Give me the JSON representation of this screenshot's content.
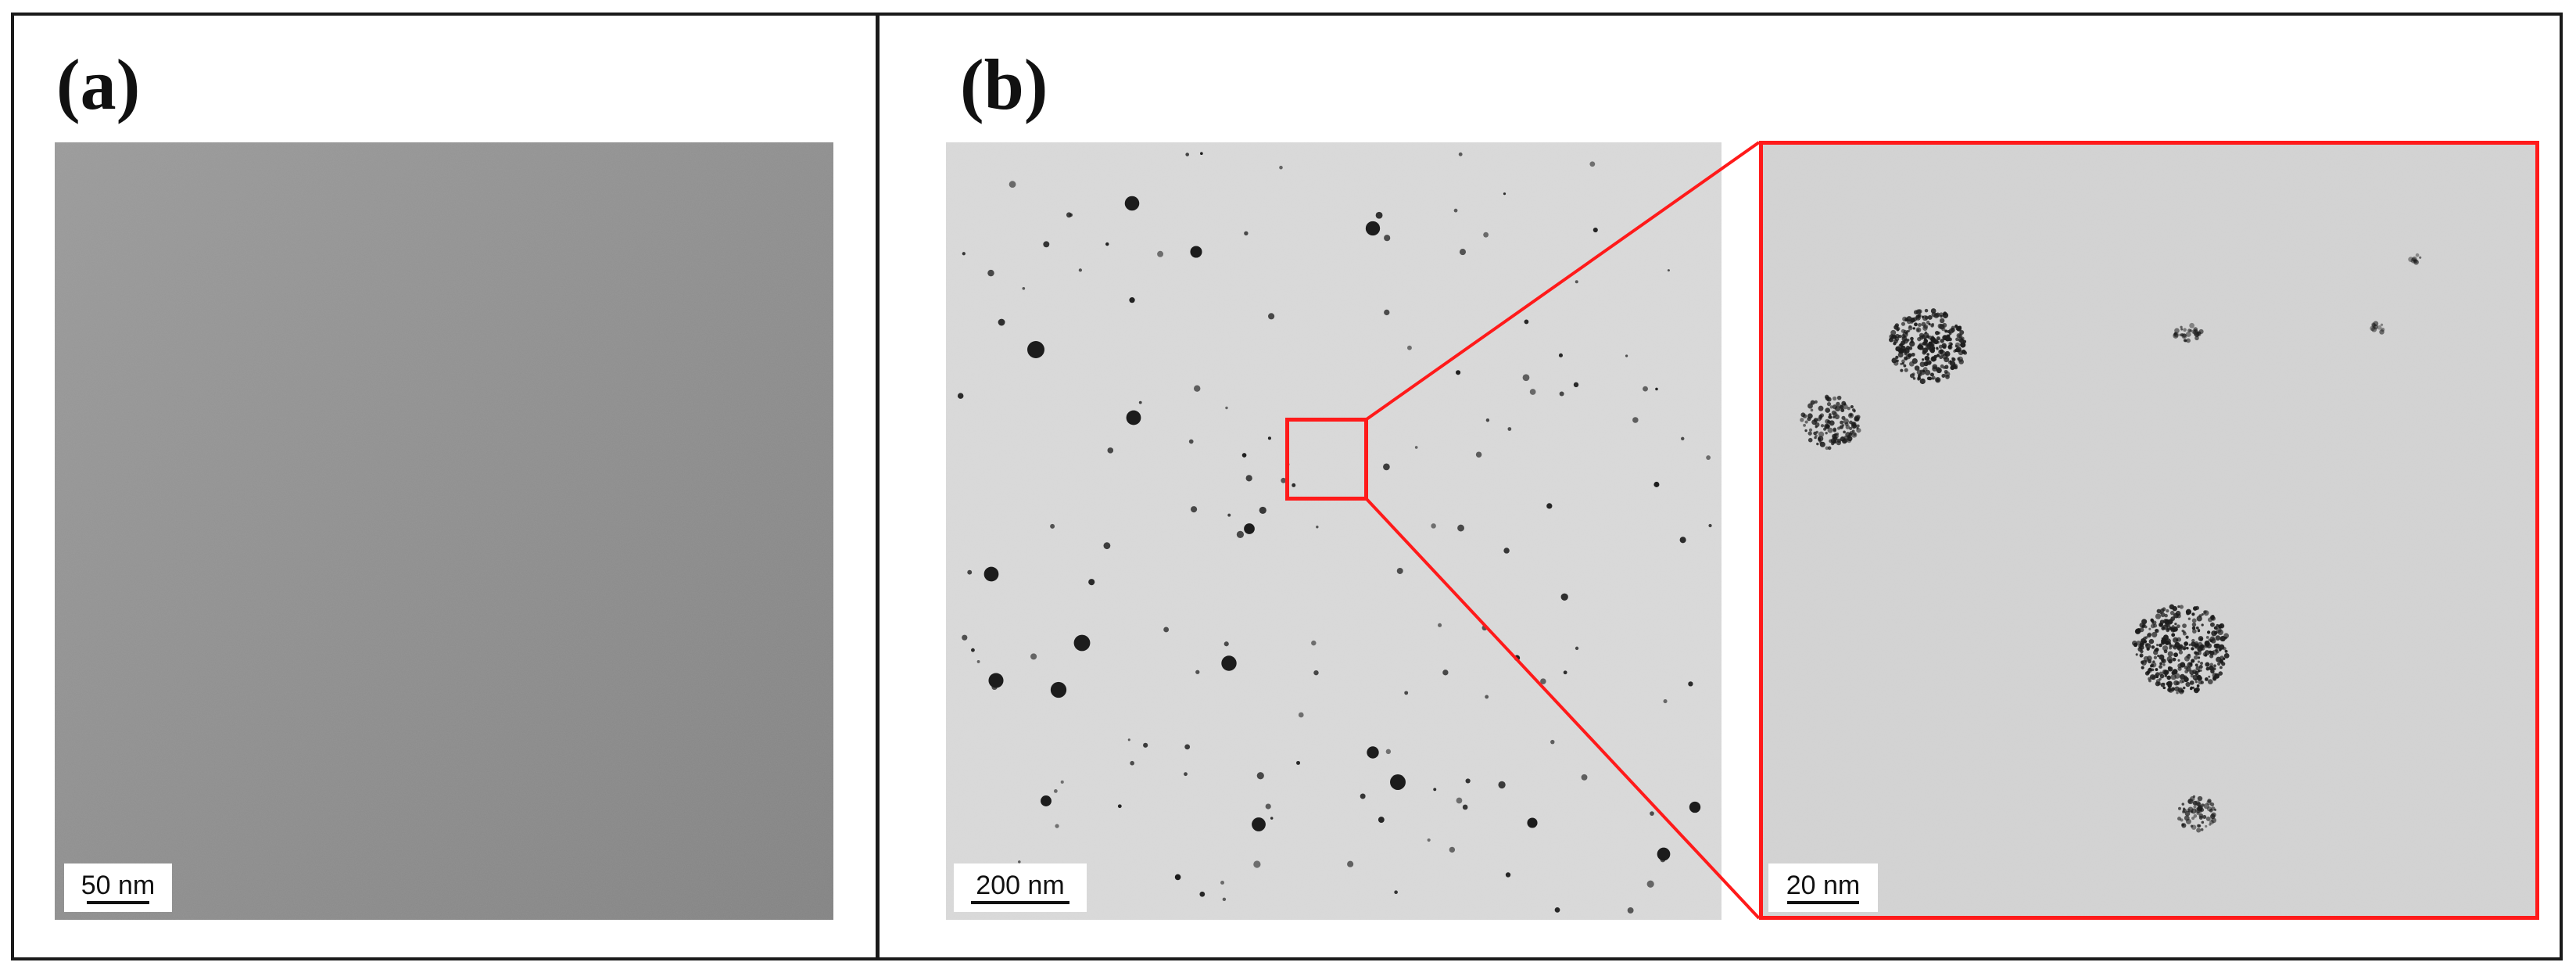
{
  "panels": [
    {
      "label": "(a)",
      "scale_bar": "50 nm"
    },
    {
      "label": "(b)",
      "scale_bar": "200 nm"
    },
    {
      "label": "",
      "scale_bar": "20 nm"
    }
  ],
  "colors": {
    "frame": "#1a1a1a",
    "highlight": "#ff1a1a",
    "panel_a_background": "#8f8f8f",
    "panel_b_background": "#dcdcdc",
    "particle": "#1c1c1c"
  }
}
